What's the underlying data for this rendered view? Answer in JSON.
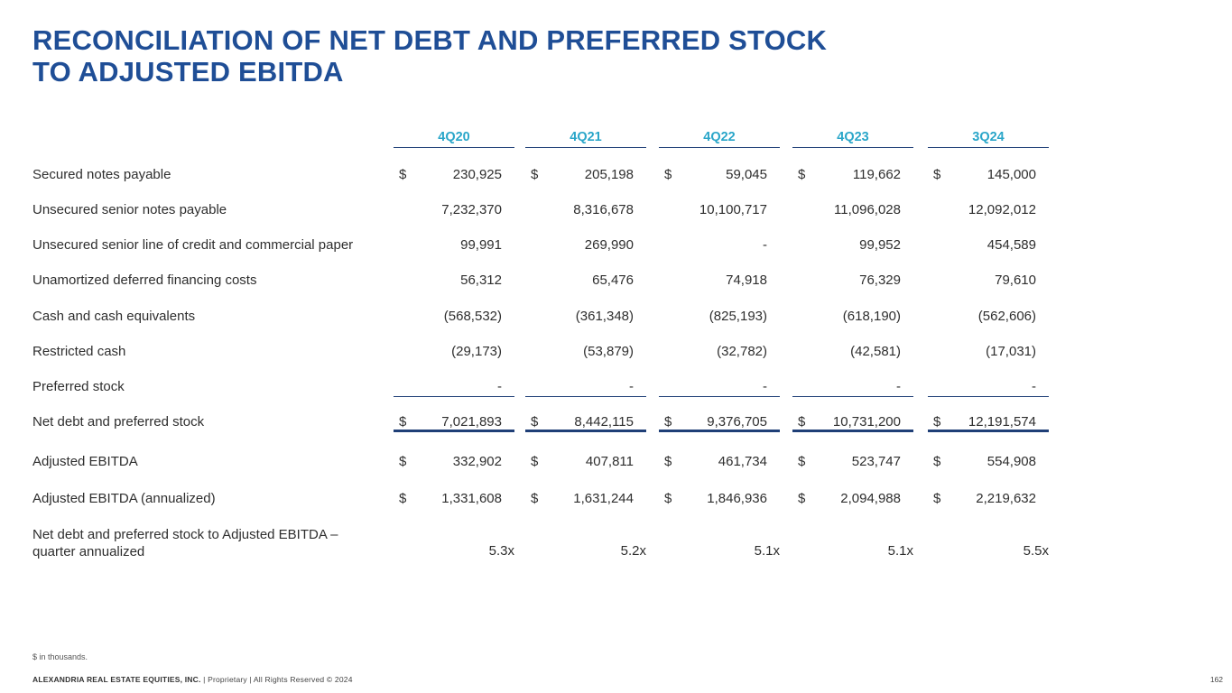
{
  "title": {
    "line1": "RECONCILIATION OF NET DEBT AND PREFERRED STOCK",
    "line2": "TO ADJUSTED EBITDA"
  },
  "periods": [
    "4Q20",
    "4Q21",
    "4Q22",
    "4Q23",
    "3Q24"
  ],
  "rows": [
    {
      "label": "Secured notes payable",
      "dollar": true,
      "values": [
        "230,925",
        "205,198",
        "59,045",
        "119,662",
        "145,000"
      ]
    },
    {
      "label": "Unsecured senior notes payable",
      "dollar": false,
      "values": [
        "7,232,370",
        "8,316,678",
        "10,100,717",
        "11,096,028",
        "12,092,012"
      ]
    },
    {
      "label": "Unsecured senior line of credit and commercial paper",
      "dollar": false,
      "values": [
        "99,991",
        "269,990",
        "-",
        "99,952",
        "454,589"
      ]
    },
    {
      "label": "Unamortized deferred financing costs",
      "dollar": false,
      "values": [
        "56,312",
        "65,476",
        "74,918",
        "76,329",
        "79,610"
      ]
    },
    {
      "label": "Cash and cash equivalents",
      "dollar": false,
      "values": [
        "(568,532)",
        "(361,348)",
        "(825,193)",
        "(618,190)",
        "(562,606)"
      ]
    },
    {
      "label": "Restricted cash",
      "dollar": false,
      "values": [
        "(29,173)",
        "(53,879)",
        "(32,782)",
        "(42,581)",
        "(17,031)"
      ]
    },
    {
      "label": "Preferred stock",
      "dollar": false,
      "values": [
        "-",
        "-",
        "-",
        "-",
        "-"
      ]
    },
    {
      "label": "Net debt and preferred stock",
      "dollar": true,
      "values": [
        "7,021,893",
        "8,442,115",
        "9,376,705",
        "10,731,200",
        "12,191,574"
      ]
    },
    {
      "label": "Adjusted EBITDA",
      "dollar": true,
      "values": [
        "332,902",
        "407,811",
        "461,734",
        "523,747",
        "554,908"
      ]
    },
    {
      "label": "Adjusted EBITDA (annualized)",
      "dollar": true,
      "values": [
        "1,331,608",
        "1,631,244",
        "1,846,936",
        "2,094,988",
        "2,219,632"
      ]
    },
    {
      "label_line1": "Net debt and preferred stock to Adjusted EBITDA –",
      "label_line2": "quarter annualized",
      "dollar": false,
      "values": [
        "5.3x",
        "5.2x",
        "5.1x",
        "5.1x",
        "5.5x"
      ]
    }
  ],
  "dollar_sign": "$",
  "footnote": "$ in thousands.",
  "footer": {
    "company": "ALEXANDRIA REAL ESTATE EQUITIES, INC.",
    "rest": " | Proprietary | All Rights Reserved © 2024"
  },
  "page_number": "162"
}
